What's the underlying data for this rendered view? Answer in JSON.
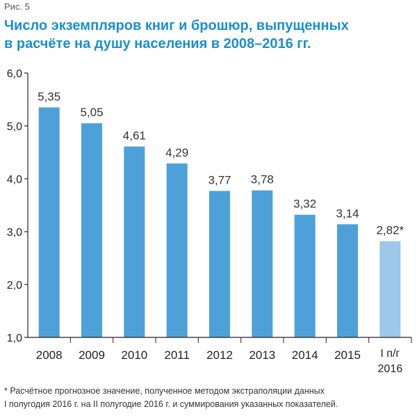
{
  "figure_label": "Рис. 5",
  "title_line1": "Число экземпляров книг и брошюр, выпущенных",
  "title_line2": "в расчёте на душу населения в 2008–2016 гг.",
  "footnote_line1": "* Расчётное прогнозное значение, полученное методом экстраполяции данных",
  "footnote_line2": "I полугодия 2016 г. на II полугодие 2016 г. и суммирования указанных показателей.",
  "colors": {
    "bar": "#4ea1d8",
    "bar_estimate": "#9cc8ea",
    "title": "#1a8fd1"
  },
  "chart_data": {
    "type": "bar",
    "title": "Число экземпляров книг и брошюр, выпущенных в расчёте на душу населения в 2008–2016 гг.",
    "categories": [
      "2008",
      "2009",
      "2010",
      "2011",
      "2012",
      "2013",
      "2014",
      "2015",
      "I п/г 2016"
    ],
    "values": [
      5.35,
      5.05,
      4.61,
      4.29,
      3.77,
      3.78,
      3.32,
      3.14,
      2.82
    ],
    "value_labels": [
      "5,35",
      "5,05",
      "4,61",
      "4,29",
      "3,77",
      "3,78",
      "3,32",
      "3,14",
      "2,82*"
    ],
    "estimated": [
      false,
      false,
      false,
      false,
      false,
      false,
      false,
      false,
      true
    ],
    "ylim": [
      1.0,
      6.0
    ],
    "yticks": [
      1.0,
      2.0,
      3.0,
      4.0,
      5.0,
      6.0
    ],
    "ytick_labels": [
      "1,0",
      "2,0",
      "3,0",
      "4,0",
      "5,0",
      "6,0"
    ],
    "xlabel": "",
    "ylabel": "",
    "grid": false,
    "legend": "none"
  }
}
